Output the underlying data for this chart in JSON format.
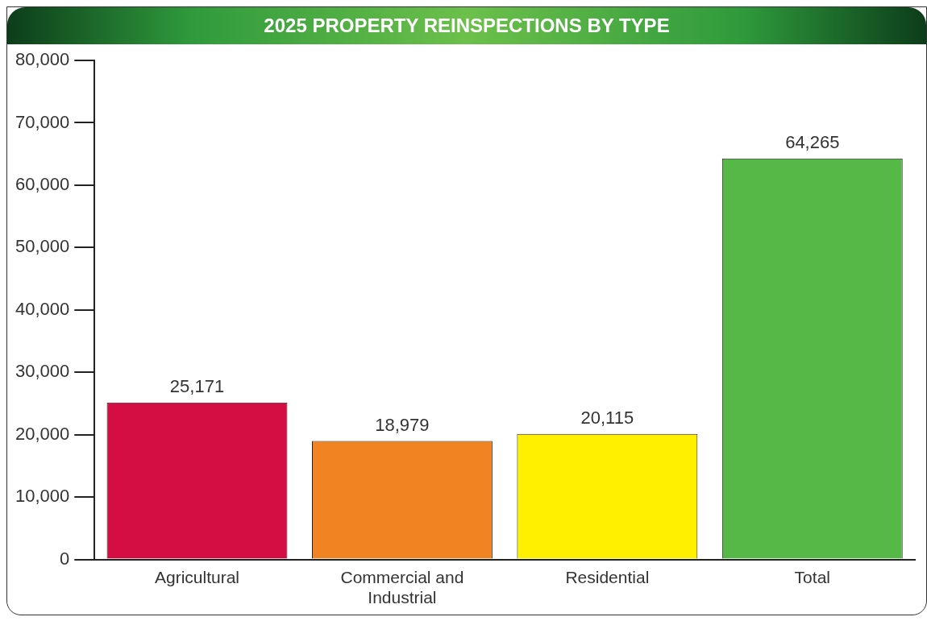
{
  "chart_data": {
    "type": "bar",
    "title": "2025 PROPERTY REINSPECTIONS BY TYPE",
    "categories": [
      "Agricultural",
      "Commercial and Industrial",
      "Residential",
      "Total"
    ],
    "values": [
      25171,
      18979,
      20115,
      64265
    ],
    "value_labels": [
      "25,171",
      "18,979",
      "20,115",
      "64,265"
    ],
    "colors": [
      "#d40e42",
      "#f28322",
      "#fff000",
      "#55b847"
    ],
    "ylim": [
      0,
      80000
    ],
    "yticks": [
      0,
      {
        "value": 10000,
        "label": "10,000"
      },
      {
        "value": 20000,
        "label": "20,000"
      },
      {
        "value": 30000,
        "label": "30,000"
      },
      {
        "value": 40000,
        "label": "40,000"
      },
      {
        "value": 50000,
        "label": "50,000"
      },
      {
        "value": 60000,
        "label": "60,000"
      },
      {
        "value": 70000,
        "label": "70,000"
      },
      {
        "value": 80000,
        "label": "80,000"
      }
    ],
    "grid": false,
    "legend": false
  }
}
